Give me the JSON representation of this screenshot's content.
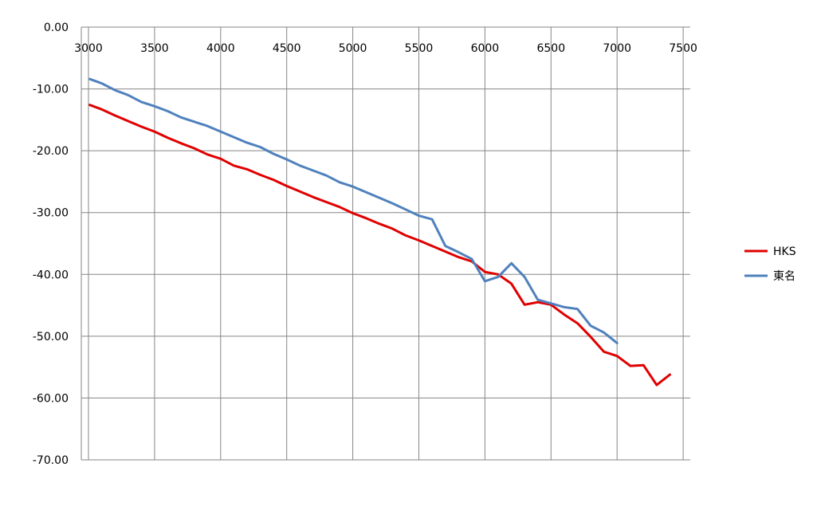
{
  "chart_data": {
    "type": "line",
    "title": "",
    "xlabel": "",
    "ylabel": "",
    "xlim": [
      3000,
      7500
    ],
    "ylim": [
      -70,
      0
    ],
    "x_ticks": [
      "3000",
      "3500",
      "4000",
      "4500",
      "5000",
      "5500",
      "6000",
      "6500",
      "7000",
      "7500"
    ],
    "y_ticks": [
      "0.00",
      "-10.00",
      "-20.00",
      "-30.00",
      "-40.00",
      "-50.00",
      "-60.00",
      "-70.00"
    ],
    "x_tick_values": [
      3000,
      3500,
      4000,
      4500,
      5000,
      5500,
      6000,
      6500,
      7000,
      7500
    ],
    "y_tick_values": [
      0,
      -10,
      -20,
      -30,
      -40,
      -50,
      -60,
      -70
    ],
    "grid": true,
    "legend_position": "right",
    "series": [
      {
        "name": "HKS",
        "color": "#e00000",
        "points": [
          [
            3010,
            -12.6
          ],
          [
            3100,
            -13.3
          ],
          [
            3200,
            -14.3
          ],
          [
            3300,
            -15.2
          ],
          [
            3400,
            -16.1
          ],
          [
            3500,
            -16.9
          ],
          [
            3600,
            -17.9
          ],
          [
            3700,
            -18.8
          ],
          [
            3800,
            -19.6
          ],
          [
            3900,
            -20.6
          ],
          [
            4000,
            -21.3
          ],
          [
            4100,
            -22.4
          ],
          [
            4200,
            -23.0
          ],
          [
            4300,
            -23.9
          ],
          [
            4400,
            -24.7
          ],
          [
            4500,
            -25.7
          ],
          [
            4600,
            -26.6
          ],
          [
            4700,
            -27.5
          ],
          [
            4800,
            -28.3
          ],
          [
            4900,
            -29.1
          ],
          [
            5000,
            -30.1
          ],
          [
            5100,
            -30.9
          ],
          [
            5200,
            -31.8
          ],
          [
            5300,
            -32.6
          ],
          [
            5400,
            -33.7
          ],
          [
            5500,
            -34.5
          ],
          [
            5600,
            -35.4
          ],
          [
            5700,
            -36.3
          ],
          [
            5800,
            -37.2
          ],
          [
            5900,
            -37.9
          ],
          [
            6000,
            -39.6
          ],
          [
            6100,
            -40.0
          ],
          [
            6200,
            -41.5
          ],
          [
            6300,
            -44.9
          ],
          [
            6400,
            -44.5
          ],
          [
            6500,
            -44.9
          ],
          [
            6600,
            -46.5
          ],
          [
            6700,
            -47.9
          ],
          [
            6800,
            -50.1
          ],
          [
            6900,
            -52.5
          ],
          [
            7000,
            -53.2
          ],
          [
            7100,
            -54.8
          ],
          [
            7200,
            -54.7
          ],
          [
            7300,
            -57.9
          ],
          [
            7400,
            -56.2
          ]
        ]
      },
      {
        "name": "東名",
        "color": "#4f81bd",
        "points": [
          [
            3010,
            -8.4
          ],
          [
            3100,
            -9.1
          ],
          [
            3200,
            -10.2
          ],
          [
            3300,
            -11.0
          ],
          [
            3400,
            -12.1
          ],
          [
            3500,
            -12.8
          ],
          [
            3600,
            -13.6
          ],
          [
            3700,
            -14.6
          ],
          [
            3800,
            -15.3
          ],
          [
            3900,
            -16.0
          ],
          [
            4000,
            -16.9
          ],
          [
            4100,
            -17.8
          ],
          [
            4200,
            -18.7
          ],
          [
            4300,
            -19.4
          ],
          [
            4400,
            -20.5
          ],
          [
            4500,
            -21.4
          ],
          [
            4600,
            -22.4
          ],
          [
            4700,
            -23.2
          ],
          [
            4800,
            -24.0
          ],
          [
            4900,
            -25.1
          ],
          [
            5000,
            -25.8
          ],
          [
            5100,
            -26.7
          ],
          [
            5200,
            -27.6
          ],
          [
            5300,
            -28.5
          ],
          [
            5400,
            -29.5
          ],
          [
            5500,
            -30.5
          ],
          [
            5600,
            -31.1
          ],
          [
            5700,
            -35.4
          ],
          [
            5800,
            -36.4
          ],
          [
            5900,
            -37.5
          ],
          [
            6000,
            -41.1
          ],
          [
            6100,
            -40.4
          ],
          [
            6200,
            -38.2
          ],
          [
            6300,
            -40.4
          ],
          [
            6400,
            -44.1
          ],
          [
            6500,
            -44.7
          ],
          [
            6600,
            -45.3
          ],
          [
            6700,
            -45.6
          ],
          [
            6800,
            -48.3
          ],
          [
            6900,
            -49.4
          ],
          [
            7000,
            -51.1
          ]
        ]
      }
    ]
  }
}
